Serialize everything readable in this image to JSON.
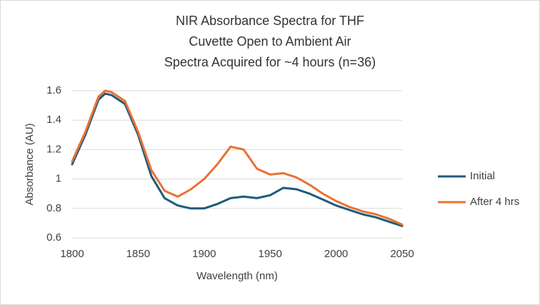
{
  "chart_data": {
    "type": "line",
    "title": [
      "NIR Absorbance Spectra for THF",
      "Cuvette Open to Ambient Air",
      "Spectra Acquired for ~4 hours (n=36)"
    ],
    "x_label": "Wavelength (nm)",
    "y_label": "Absorbance (AU)",
    "x": [
      1800,
      1810,
      1820,
      1825,
      1830,
      1840,
      1850,
      1860,
      1870,
      1880,
      1890,
      1900,
      1910,
      1920,
      1930,
      1940,
      1950,
      1960,
      1970,
      1980,
      1990,
      2000,
      2010,
      2020,
      2030,
      2040,
      2050
    ],
    "series": [
      {
        "name": "Initial",
        "color": "#1d5b79",
        "values": [
          1.1,
          1.3,
          1.54,
          1.58,
          1.57,
          1.51,
          1.3,
          1.02,
          0.87,
          0.82,
          0.8,
          0.8,
          0.83,
          0.87,
          0.88,
          0.87,
          0.89,
          0.94,
          0.93,
          0.9,
          0.86,
          0.82,
          0.79,
          0.76,
          0.74,
          0.71,
          0.68
        ]
      },
      {
        "name": "After 4 hrs",
        "color": "#e97132",
        "values": [
          1.12,
          1.32,
          1.56,
          1.6,
          1.59,
          1.53,
          1.32,
          1.06,
          0.92,
          0.88,
          0.93,
          1.0,
          1.1,
          1.22,
          1.2,
          1.07,
          1.03,
          1.04,
          1.01,
          0.96,
          0.9,
          0.85,
          0.81,
          0.78,
          0.76,
          0.73,
          0.69
        ]
      }
    ],
    "xlim": [
      1800,
      2050
    ],
    "xticks": [
      1800,
      1850,
      1900,
      1950,
      2000,
      2050
    ],
    "ylim": [
      0.6,
      1.6
    ],
    "yticks": [
      0.6,
      0.8,
      1,
      1.2,
      1.4,
      1.6
    ],
    "grid": true,
    "legend": "right"
  }
}
